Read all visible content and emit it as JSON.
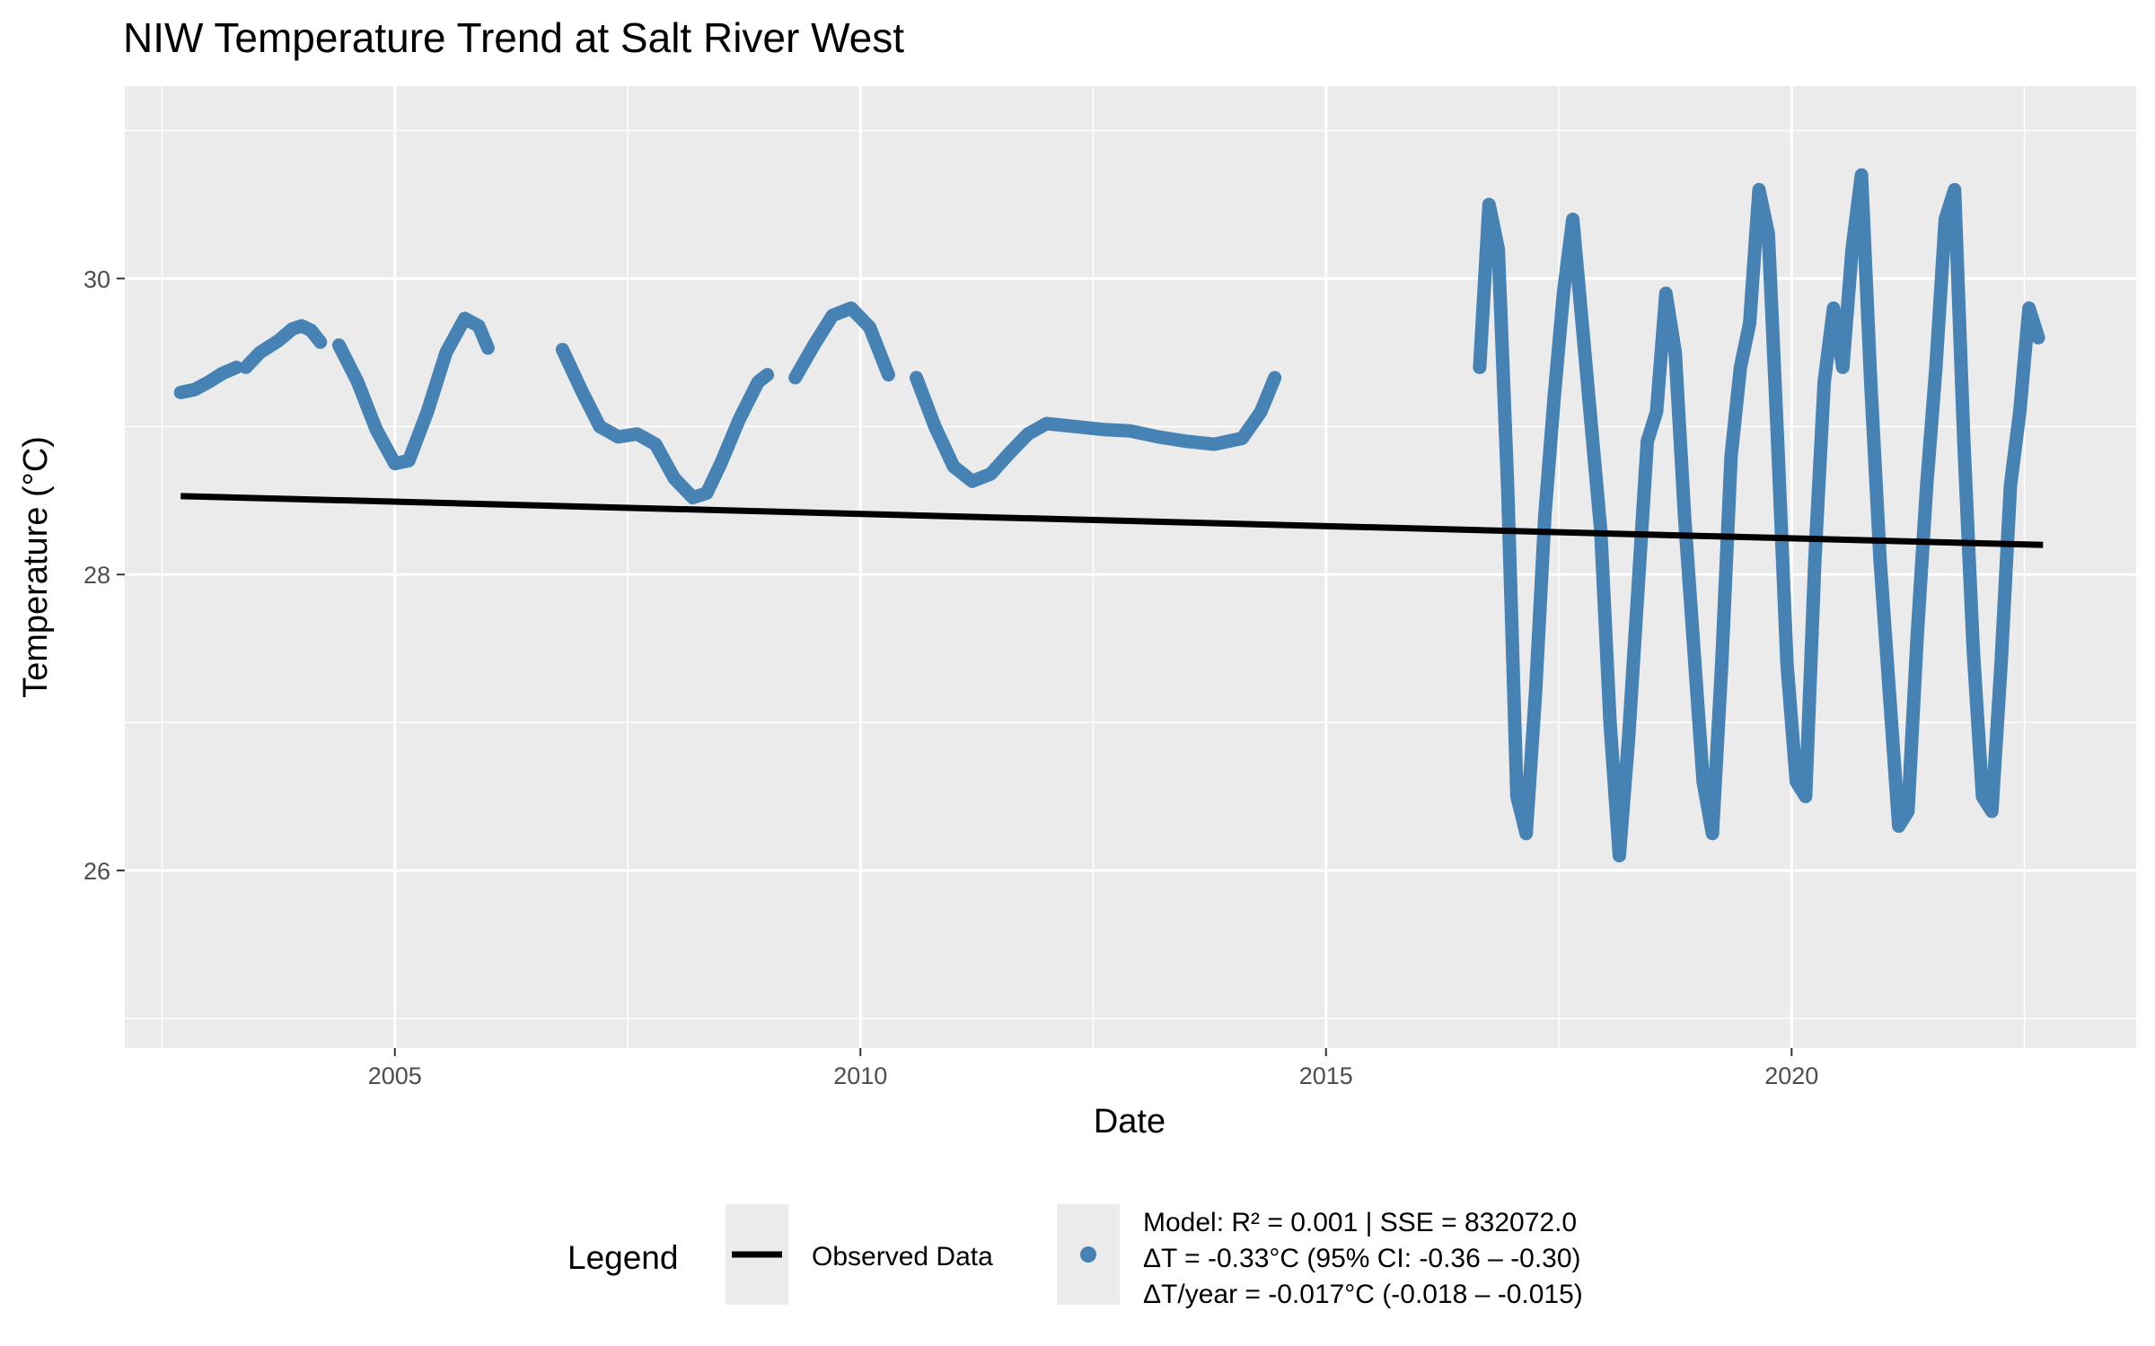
{
  "chart_data": {
    "type": "line",
    "title": "NIW Temperature Trend at Salt River West",
    "xlabel": "Date",
    "ylabel": "Temperature (°C)",
    "xlim": [
      2002.1,
      2023.7
    ],
    "ylim": [
      24.8,
      31.3
    ],
    "x_ticks": [
      "2005",
      "2010",
      "2015",
      "2020"
    ],
    "x_tick_values": [
      2005,
      2010,
      2015,
      2020
    ],
    "y_ticks": [
      "26",
      "28",
      "30"
    ],
    "y_tick_values": [
      26,
      28,
      30
    ],
    "grid": true,
    "legend_position": "bottom",
    "legend": {
      "title": "Legend",
      "entries": [
        "Observed Data",
        "Model: R² = 0.001 | SSE = 832072.0",
        "ΔT = -0.33°C (95% CI: -0.36 – -0.30)",
        "ΔT/year = -0.017°C (-0.018 – -0.015)"
      ]
    },
    "series": [
      {
        "name": "Observed Data",
        "color": "#4682B4",
        "segments": [
          {
            "x": [
              2002.7,
              2002.85,
              2003.0,
              2003.15,
              2003.3
            ],
            "y": [
              29.23,
              29.25,
              29.3,
              29.36,
              29.4
            ]
          },
          {
            "x": [
              2003.4,
              2003.55,
              2003.75,
              2003.9,
              2004.0,
              2004.1,
              2004.2
            ],
            "y": [
              29.4,
              29.5,
              29.58,
              29.66,
              29.68,
              29.65,
              29.57
            ]
          },
          {
            "x": [
              2004.4,
              2004.6,
              2004.8,
              2005.0,
              2005.15,
              2005.35,
              2005.55,
              2005.75,
              2005.9,
              2006.0
            ],
            "y": [
              29.55,
              29.3,
              28.98,
              28.75,
              28.77,
              29.1,
              29.5,
              29.73,
              29.68,
              29.53
            ]
          },
          {
            "x": [
              2006.8,
              2007.0,
              2007.2,
              2007.4,
              2007.6,
              2007.8,
              2008.0,
              2008.2,
              2008.35,
              2008.5,
              2008.7,
              2008.9,
              2009.0
            ],
            "y": [
              29.52,
              29.25,
              29.0,
              28.93,
              28.95,
              28.88,
              28.65,
              28.52,
              28.55,
              28.75,
              29.05,
              29.3,
              29.35
            ]
          },
          {
            "x": [
              2009.3,
              2009.5,
              2009.7,
              2009.9,
              2010.1,
              2010.3
            ],
            "y": [
              29.33,
              29.55,
              29.75,
              29.8,
              29.67,
              29.35
            ]
          },
          {
            "x": [
              2010.6,
              2010.8,
              2011.0,
              2011.2,
              2011.4,
              2011.6,
              2011.8,
              2012.0,
              2012.3,
              2012.6,
              2012.9,
              2013.2,
              2013.5,
              2013.8,
              2014.1,
              2014.3,
              2014.45
            ],
            "y": [
              29.33,
              29.0,
              28.73,
              28.63,
              28.68,
              28.82,
              28.95,
              29.02,
              29.0,
              28.98,
              28.97,
              28.93,
              28.9,
              28.88,
              28.92,
              29.1,
              29.33
            ]
          },
          {
            "x": [
              2016.65,
              2016.75,
              2016.85,
              2016.95,
              2017.05,
              2017.15,
              2017.25,
              2017.35,
              2017.45,
              2017.55,
              2017.65,
              2017.75,
              2017.85,
              2017.95,
              2018.05,
              2018.15,
              2018.25,
              2018.35,
              2018.45,
              2018.55,
              2018.65,
              2018.75,
              2018.85,
              2018.95,
              2019.05,
              2019.15,
              2019.25,
              2019.35,
              2019.45,
              2019.55,
              2019.65,
              2019.75,
              2019.85,
              2019.95,
              2020.05,
              2020.15,
              2020.25,
              2020.35,
              2020.45,
              2020.55,
              2020.65,
              2020.75,
              2020.85,
              2020.95,
              2021.05,
              2021.15,
              2021.25,
              2021.35,
              2021.45,
              2021.55,
              2021.65,
              2021.75,
              2021.85,
              2021.95,
              2022.05,
              2022.15,
              2022.25,
              2022.35,
              2022.45,
              2022.55,
              2022.65
            ],
            "y": [
              29.4,
              30.5,
              30.2,
              28.6,
              26.5,
              26.25,
              27.2,
              28.4,
              29.2,
              29.9,
              30.4,
              29.7,
              29.0,
              28.3,
              27.0,
              26.1,
              26.9,
              27.9,
              28.9,
              29.1,
              29.9,
              29.5,
              28.4,
              27.5,
              26.6,
              26.25,
              27.4,
              28.8,
              29.4,
              29.7,
              30.6,
              30.3,
              28.9,
              27.4,
              26.6,
              26.5,
              28.1,
              29.3,
              29.8,
              29.4,
              30.2,
              30.7,
              29.3,
              28.1,
              27.2,
              26.3,
              26.4,
              27.6,
              28.6,
              29.4,
              30.4,
              30.6,
              28.9,
              27.5,
              26.5,
              26.4,
              27.4,
              28.6,
              29.1,
              29.8,
              29.6
            ]
          }
        ]
      },
      {
        "name": "Model: R² = 0.001 | SSE = 832072.0",
        "color": "#000000",
        "x": [
          2002.7,
          2022.7
        ],
        "y": [
          28.53,
          28.2
        ]
      }
    ]
  }
}
